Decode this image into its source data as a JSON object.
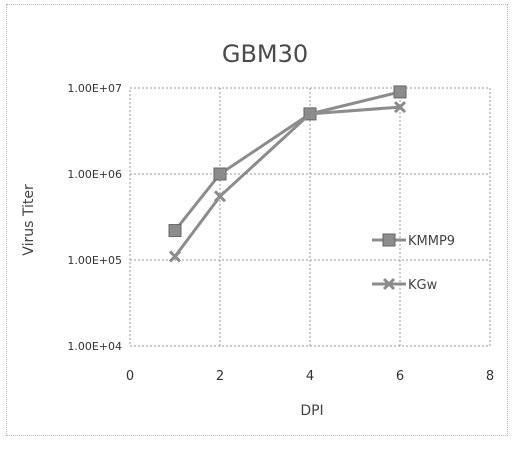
{
  "chart_data": {
    "type": "line",
    "title": "GBM30",
    "xlabel": "DPI",
    "ylabel": "Virus Titer",
    "x_ticks": [
      0,
      2,
      4,
      6,
      8
    ],
    "y_ticks": [
      "1.00E+04",
      "1.00E+05",
      "1.00E+06",
      "1.00E+07"
    ],
    "xlim": [
      0,
      8
    ],
    "ylim": [
      10000,
      10000000
    ],
    "y_scale": "log",
    "grid": true,
    "legend_position": "right",
    "series": [
      {
        "name": "KMMP9",
        "marker": "square",
        "color": "#8c8c8c",
        "x": [
          1,
          2,
          4,
          6
        ],
        "y": [
          220000,
          1000000,
          5000000,
          9000000
        ]
      },
      {
        "name": "KGw",
        "marker": "x",
        "color": "#8c8c8c",
        "x": [
          1,
          2,
          4,
          6
        ],
        "y": [
          110000,
          550000,
          5000000,
          6000000
        ]
      }
    ]
  }
}
